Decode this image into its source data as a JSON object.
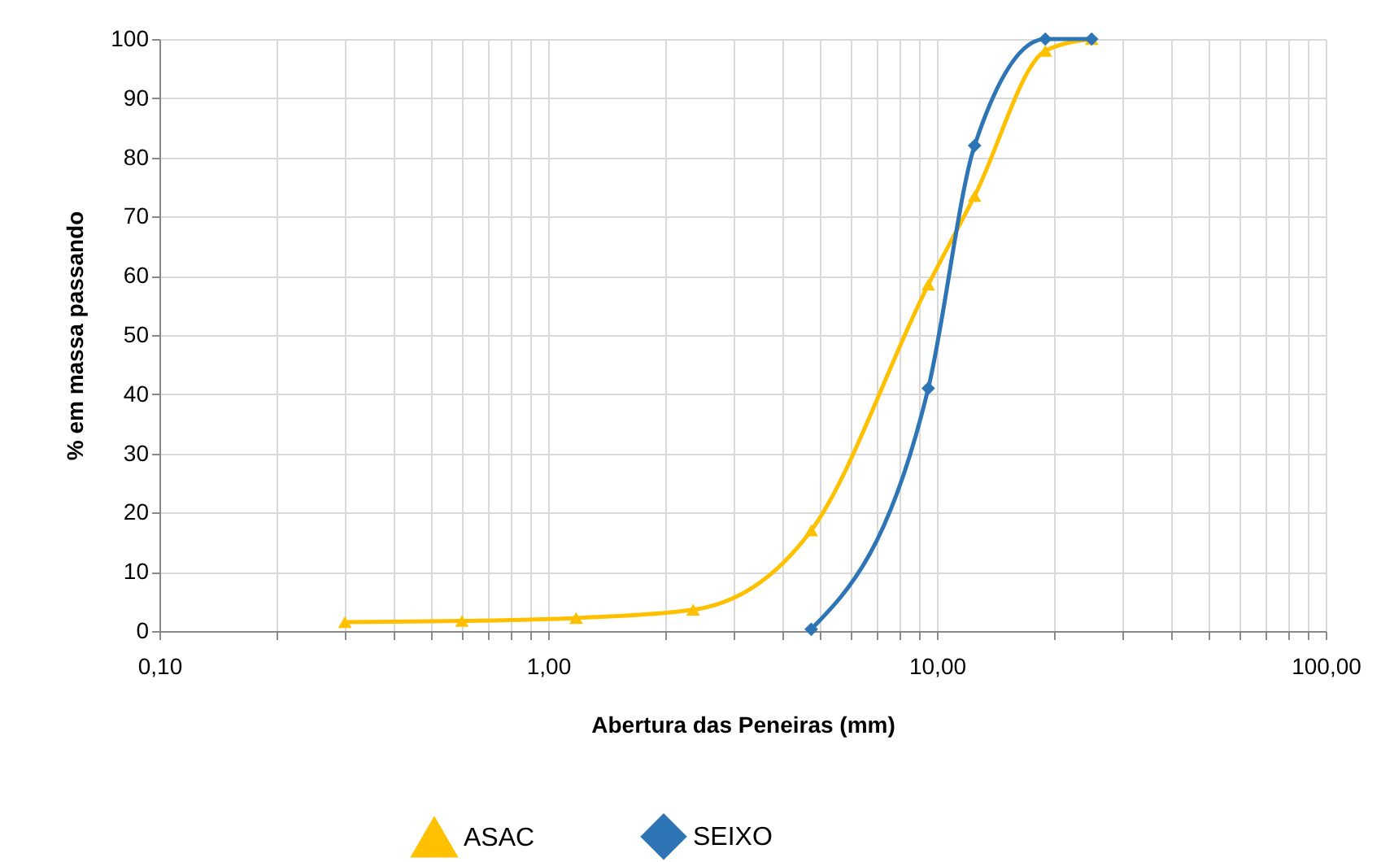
{
  "chart_data": {
    "type": "line",
    "xlabel": "Abertura das Peneiras (mm)",
    "ylabel": "% em massa passando",
    "log": "x",
    "grid": true,
    "legend": "bottom",
    "line_style": "solid",
    "xlim": [
      0.1,
      100
    ],
    "xticks": [
      {
        "value": 0.1,
        "label": "0,10"
      },
      {
        "value": 0.2,
        "label": null
      },
      {
        "value": 0.3,
        "label": null
      },
      {
        "value": 0.4,
        "label": null
      },
      {
        "value": 0.5,
        "label": null
      },
      {
        "value": 0.6,
        "label": null
      },
      {
        "value": 0.7,
        "label": null
      },
      {
        "value": 0.8,
        "label": null
      },
      {
        "value": 0.9,
        "label": null
      },
      {
        "value": 1,
        "label": "1,00"
      },
      {
        "value": 2,
        "label": null
      },
      {
        "value": 3,
        "label": null
      },
      {
        "value": 4,
        "label": null
      },
      {
        "value": 5,
        "label": null
      },
      {
        "value": 6,
        "label": null
      },
      {
        "value": 7,
        "label": null
      },
      {
        "value": 8,
        "label": null
      },
      {
        "value": 9,
        "label": null
      },
      {
        "value": 10,
        "label": "10,00"
      },
      {
        "value": 20,
        "label": null
      },
      {
        "value": 30,
        "label": null
      },
      {
        "value": 40,
        "label": null
      },
      {
        "value": 50,
        "label": null
      },
      {
        "value": 60,
        "label": null
      },
      {
        "value": 70,
        "label": null
      },
      {
        "value": 80,
        "label": null
      },
      {
        "value": 90,
        "label": null
      },
      {
        "value": 100,
        "label": "100,00"
      }
    ],
    "ylim": [
      0,
      100
    ],
    "yticks": [
      0,
      10,
      20,
      30,
      40,
      50,
      60,
      70,
      80,
      90,
      100
    ],
    "series": [
      {
        "name": "ASAC",
        "color": "#ffc000",
        "marker": "triangle",
        "x": [
          0.3,
          0.6,
          1.18,
          2.36,
          4.75,
          9.5,
          12.5,
          19,
          25
        ],
        "values": [
          1.5,
          1.7,
          2.2,
          3.6,
          17,
          58.5,
          73.5,
          98,
          100
        ]
      },
      {
        "name": "SEIXO",
        "color": "#2e75b6",
        "marker": "diamond",
        "x": [
          4.75,
          9.5,
          12.5,
          19,
          25
        ],
        "values": [
          0.3,
          41,
          82,
          100,
          100
        ]
      }
    ]
  }
}
